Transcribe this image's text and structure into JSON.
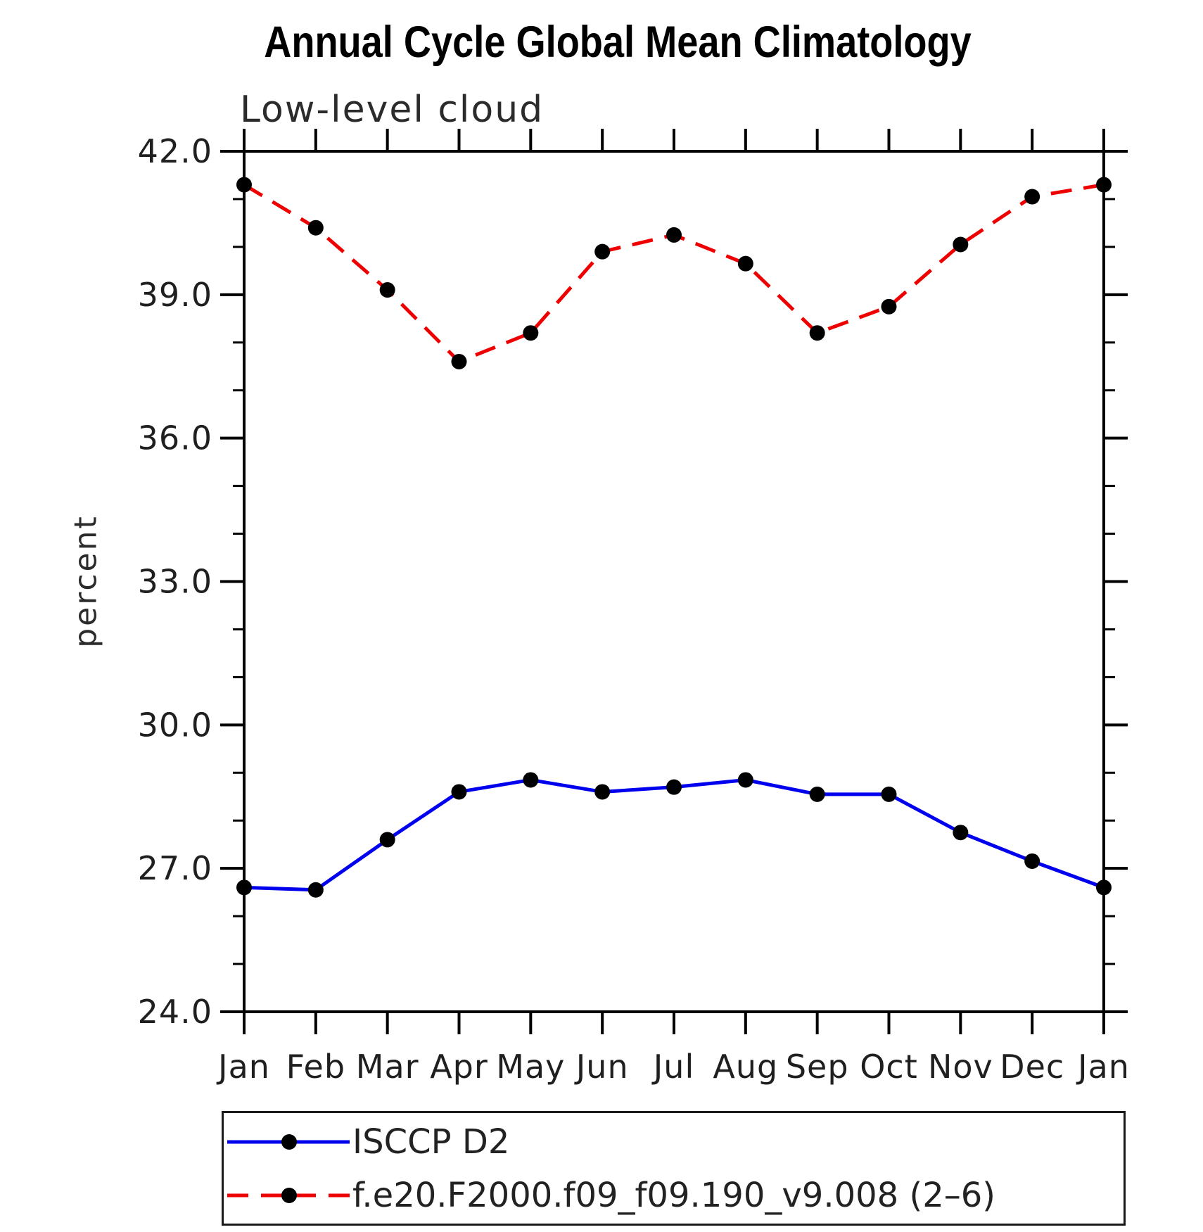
{
  "title": "Annual Cycle Global Mean Climatology",
  "subtitle": "Low-level cloud",
  "ylabel": "percent",
  "chart_data": {
    "type": "line",
    "title": "Annual Cycle Global Mean Climatology",
    "subtitle": "Low-level cloud",
    "xlabel": "",
    "ylabel": "percent",
    "x_categories": [
      "Jan",
      "Feb",
      "Mar",
      "Apr",
      "May",
      "Jun",
      "Jul",
      "Aug",
      "Sep",
      "Oct",
      "Nov",
      "Dec",
      "Jan"
    ],
    "ylim": [
      24.0,
      42.0
    ],
    "y_ticks_major": [
      24,
      27,
      30,
      33,
      36,
      39,
      42
    ],
    "y_tick_labels": [
      "24.0",
      "27.0",
      "30.0",
      "33.0",
      "36.0",
      "39.0",
      "42.0"
    ],
    "y_minor_step": 1,
    "grid": false,
    "legend_position": "bottom-left",
    "axis_color": "#000000",
    "tick_label_color": "#1f1f1f",
    "series": [
      {
        "name": "ISCCP D2",
        "color": "#0000ee",
        "style": "solid",
        "marker": "circle",
        "marker_color": "#000000",
        "values": [
          26.6,
          26.55,
          27.6,
          28.6,
          28.85,
          28.6,
          28.7,
          28.85,
          28.55,
          28.55,
          27.75,
          27.15,
          26.6
        ]
      },
      {
        "name": "f.e20.F2000.f09_f09.190_v9.008 (2–6)",
        "color": "#ee0000",
        "style": "dashed",
        "marker": "circle",
        "marker_color": "#000000",
        "values": [
          41.3,
          40.4,
          39.1,
          37.6,
          38.2,
          39.9,
          40.25,
          39.65,
          38.2,
          38.75,
          40.05,
          41.05,
          41.3
        ]
      }
    ]
  }
}
